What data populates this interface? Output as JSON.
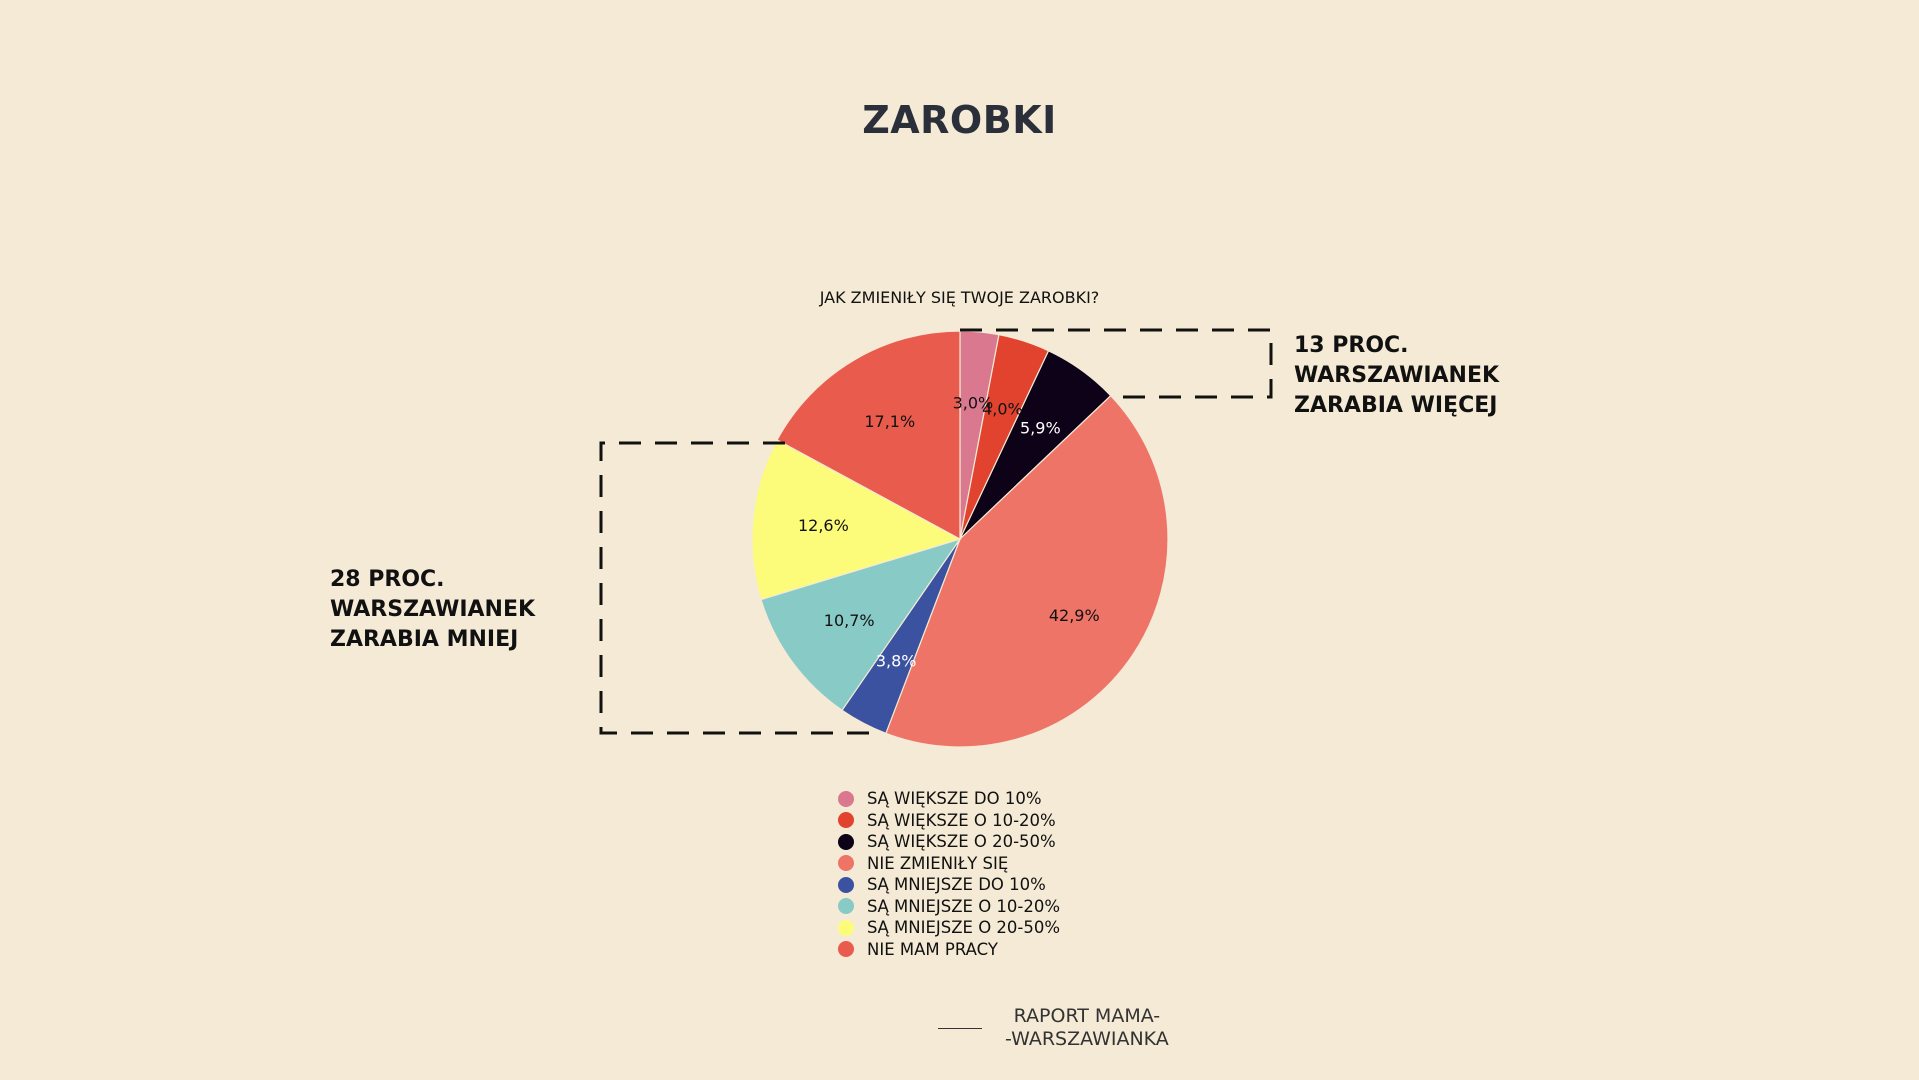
{
  "chart_data": {
    "type": "pie",
    "title": "ZAROBKI",
    "subtitle": "JAK ZMIENIŁY SIĘ TWOJE ZAROBKI?",
    "slices": [
      {
        "label": "SĄ WIĘKSZE DO 10%",
        "value": 3.0,
        "display": "3,0%",
        "color": "#d9788f",
        "label_color": "#111111"
      },
      {
        "label": "SĄ WIĘKSZE O 10-20%",
        "value": 4.0,
        "display": "4,0%",
        "color": "#e2432f",
        "label_color": "#111111"
      },
      {
        "label": "SĄ WIĘKSZE O 20-50%",
        "value": 5.9,
        "display": "5,9%",
        "color": "#0e0218",
        "label_color": "#ffffff"
      },
      {
        "label": "NIE ZMIENIŁY SIĘ",
        "value": 42.9,
        "display": "42,9%",
        "color": "#ef7468",
        "label_color": "#111111"
      },
      {
        "label": "SĄ MNIEJSZE DO 10%",
        "value": 3.8,
        "display": "3,8%",
        "color": "#3a52a0",
        "label_color": "#ffffff"
      },
      {
        "label": "SĄ MNIEJSZE O 10-20%",
        "value": 10.7,
        "display": "10,7%",
        "color": "#88cac6",
        "label_color": "#111111"
      },
      {
        "label": "SĄ MNIEJSZE O 20-50%",
        "value": 12.6,
        "display": "12,6%",
        "color": "#fcfc7a",
        "label_color": "#111111"
      },
      {
        "label": "NIE MAM PRACY",
        "value": 17.1,
        "display": "17,1%",
        "color": "#e95b4d",
        "label_color": "#111111"
      }
    ],
    "legend_position": "bottom"
  },
  "callouts": {
    "more": [
      "13 PROC.",
      "WARSZAWIANEK",
      "ZARABIA WIĘCEJ"
    ],
    "less": [
      "28 PROC.",
      "WARSZAWIANEK",
      "ZARABIA MNIEJ"
    ]
  },
  "source": [
    "RAPORT MAMA-",
    "-WARSZAWIANKA"
  ]
}
